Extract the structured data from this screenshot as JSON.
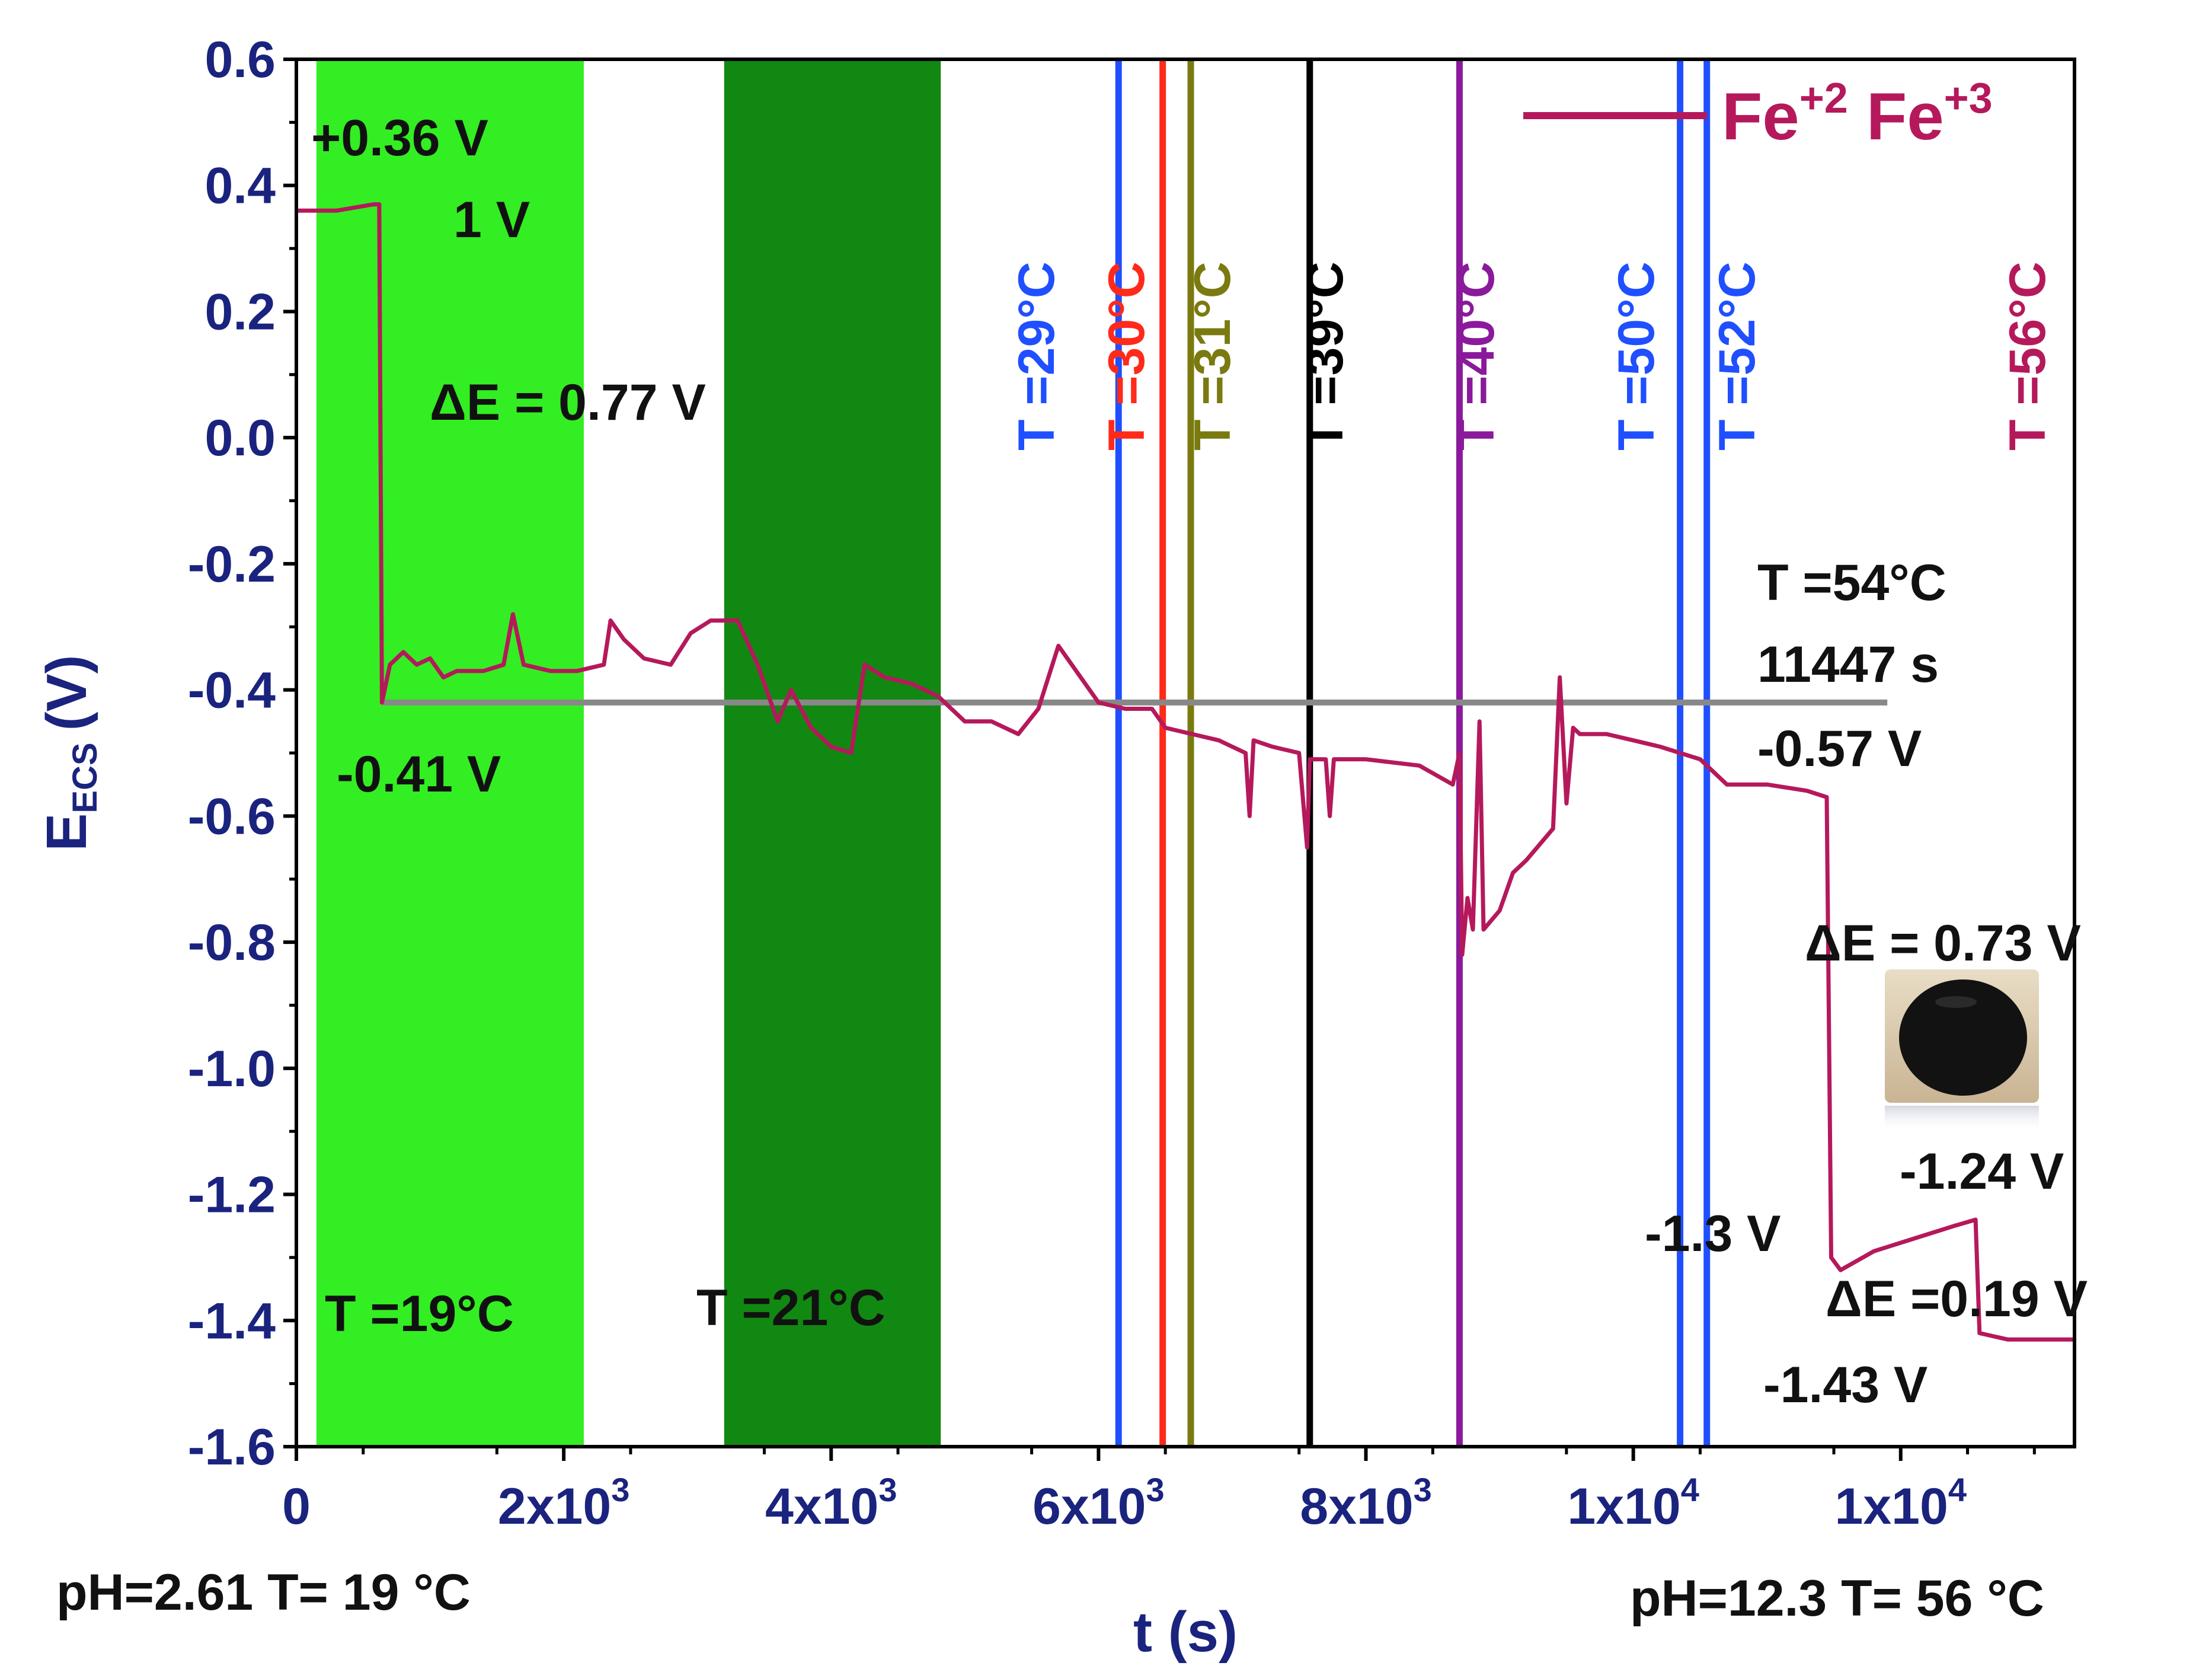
{
  "chart_data": {
    "type": "line",
    "xlabel": "t (s)",
    "ylabel_main": "E",
    "ylabel_sub": "ECS",
    "ylabel_unit": "(V)",
    "xlim": [
      0,
      13300
    ],
    "ylim": [
      -1.6,
      0.6
    ],
    "yticks": [
      {
        "v": 0.6,
        "label": "0.6"
      },
      {
        "v": 0.4,
        "label": "0.4"
      },
      {
        "v": 0.2,
        "label": "0.2"
      },
      {
        "v": 0.0,
        "label": "0.0"
      },
      {
        "v": -0.2,
        "label": "-0.2"
      },
      {
        "v": -0.4,
        "label": "-0.4"
      },
      {
        "v": -0.6,
        "label": "-0.6"
      },
      {
        "v": -0.8,
        "label": "-0.8"
      },
      {
        "v": -1.0,
        "label": "-1.0"
      },
      {
        "v": -1.2,
        "label": "-1.2"
      },
      {
        "v": -1.4,
        "label": "-1.4"
      },
      {
        "v": -1.6,
        "label": "-1.6"
      }
    ],
    "xticks": [
      {
        "v": 0,
        "base": "0",
        "exp": ""
      },
      {
        "v": 2000,
        "base": "2x10",
        "exp": "3"
      },
      {
        "v": 4000,
        "base": "4x10",
        "exp": "3"
      },
      {
        "v": 6000,
        "base": "6x10",
        "exp": "3"
      },
      {
        "v": 8000,
        "base": "8x10",
        "exp": "3"
      },
      {
        "v": 10000,
        "base": "1x10",
        "exp": "4"
      },
      {
        "v": 12000,
        "base": "1x10",
        "exp": "4"
      }
    ],
    "series": [
      {
        "name": "Fe+2 Fe+3",
        "legend_base": "Fe",
        "legend_sup1": "+2",
        "legend_mid": " Fe",
        "legend_sup2": "+3",
        "color": "#b5195b",
        "points": [
          [
            0,
            0.36
          ],
          [
            300,
            0.36
          ],
          [
            580,
            0.37
          ],
          [
            620,
            0.37
          ],
          [
            640,
            -0.42
          ],
          [
            700,
            -0.36
          ],
          [
            800,
            -0.34
          ],
          [
            900,
            -0.36
          ],
          [
            1000,
            -0.35
          ],
          [
            1100,
            -0.38
          ],
          [
            1200,
            -0.37
          ],
          [
            1400,
            -0.37
          ],
          [
            1550,
            -0.36
          ],
          [
            1620,
            -0.28
          ],
          [
            1700,
            -0.36
          ],
          [
            1900,
            -0.37
          ],
          [
            2100,
            -0.37
          ],
          [
            2300,
            -0.36
          ],
          [
            2350,
            -0.29
          ],
          [
            2450,
            -0.32
          ],
          [
            2600,
            -0.35
          ],
          [
            2800,
            -0.36
          ],
          [
            2950,
            -0.31
          ],
          [
            3100,
            -0.29
          ],
          [
            3300,
            -0.29
          ],
          [
            3450,
            -0.36
          ],
          [
            3600,
            -0.45
          ],
          [
            3700,
            -0.4
          ],
          [
            3850,
            -0.46
          ],
          [
            4000,
            -0.49
          ],
          [
            4150,
            -0.5
          ],
          [
            4250,
            -0.36
          ],
          [
            4400,
            -0.38
          ],
          [
            4600,
            -0.39
          ],
          [
            4800,
            -0.41
          ],
          [
            5000,
            -0.45
          ],
          [
            5200,
            -0.45
          ],
          [
            5400,
            -0.47
          ],
          [
            5550,
            -0.43
          ],
          [
            5700,
            -0.33
          ],
          [
            5800,
            -0.36
          ],
          [
            5900,
            -0.39
          ],
          [
            6000,
            -0.42
          ],
          [
            6200,
            -0.43
          ],
          [
            6400,
            -0.43
          ],
          [
            6500,
            -0.46
          ],
          [
            6700,
            -0.47
          ],
          [
            6900,
            -0.48
          ],
          [
            7000,
            -0.49
          ],
          [
            7100,
            -0.5
          ],
          [
            7130,
            -0.6
          ],
          [
            7160,
            -0.48
          ],
          [
            7300,
            -0.49
          ],
          [
            7500,
            -0.5
          ],
          [
            7560,
            -0.65
          ],
          [
            7580,
            -0.51
          ],
          [
            7700,
            -0.51
          ],
          [
            7730,
            -0.6
          ],
          [
            7760,
            -0.51
          ],
          [
            8000,
            -0.51
          ],
          [
            8400,
            -0.52
          ],
          [
            8650,
            -0.55
          ],
          [
            8700,
            -0.5
          ],
          [
            8720,
            -0.82
          ],
          [
            8760,
            -0.73
          ],
          [
            8800,
            -0.78
          ],
          [
            8850,
            -0.45
          ],
          [
            8880,
            -0.78
          ],
          [
            9000,
            -0.75
          ],
          [
            9100,
            -0.69
          ],
          [
            9200,
            -0.67
          ],
          [
            9400,
            -0.62
          ],
          [
            9450,
            -0.38
          ],
          [
            9500,
            -0.58
          ],
          [
            9550,
            -0.46
          ],
          [
            9600,
            -0.47
          ],
          [
            9800,
            -0.47
          ],
          [
            10000,
            -0.48
          ],
          [
            10200,
            -0.49
          ],
          [
            10500,
            -0.51
          ],
          [
            10700,
            -0.55
          ],
          [
            11000,
            -0.55
          ],
          [
            11300,
            -0.56
          ],
          [
            11447,
            -0.57
          ],
          [
            11480,
            -1.3
          ],
          [
            11550,
            -1.32
          ],
          [
            11800,
            -1.29
          ],
          [
            12100,
            -1.27
          ],
          [
            12400,
            -1.25
          ],
          [
            12560,
            -1.24
          ],
          [
            12590,
            -1.42
          ],
          [
            12800,
            -1.43
          ],
          [
            13300,
            -1.43
          ]
        ]
      }
    ],
    "reference_line": {
      "y": -0.42,
      "x_start": 640,
      "x_end": 11900,
      "color": "#888888"
    },
    "bands": [
      {
        "x_start": 150,
        "x_end": 2150,
        "color": "#33ee22"
      },
      {
        "x_start": 3200,
        "x_end": 4820,
        "color": "#118811"
      }
    ],
    "temperature_lines": [
      {
        "x": 6150,
        "label": "T =29°C",
        "color": "#1f4fff"
      },
      {
        "x": 6480,
        "label": "T =30°C",
        "color": "#ff2a1a"
      },
      {
        "x": 6690,
        "label": "T =31°C",
        "color": "#7a7a10"
      },
      {
        "x": 7580,
        "label": "T =39°C",
        "color": "#000000"
      },
      {
        "x": 8700,
        "label": "T =40°C",
        "color": "#8a1a9b"
      },
      {
        "x": 10350,
        "label": "T =50°C",
        "color": "#1f4fff"
      },
      {
        "x": 10550,
        "label": "T =52°C",
        "color": "#1f4fff"
      },
      {
        "x": null,
        "label": "T =56°C",
        "color": "#b5195b"
      }
    ],
    "annotations": {
      "start_potential": "+0.36 V",
      "one_v": "1 V",
      "delta_e_1": "ΔE = 0.77 V",
      "min_potential": "-0.41 V",
      "t19": "T =19°C",
      "t21": "T =21°C",
      "t54": "T =54°C",
      "time_11447": "11447 s",
      "v057": "-0.57 V",
      "delta_e_2": "ΔE = 0.73 V",
      "v124": "-1.24 V",
      "v13": "-1.3 V",
      "delta_e_3": "ΔE =0.19 V",
      "v143": "-1.43 V",
      "ph_start": "pH=2.61 T= 19 °C",
      "ph_end": "pH=12.3  T= 56 °C"
    }
  }
}
